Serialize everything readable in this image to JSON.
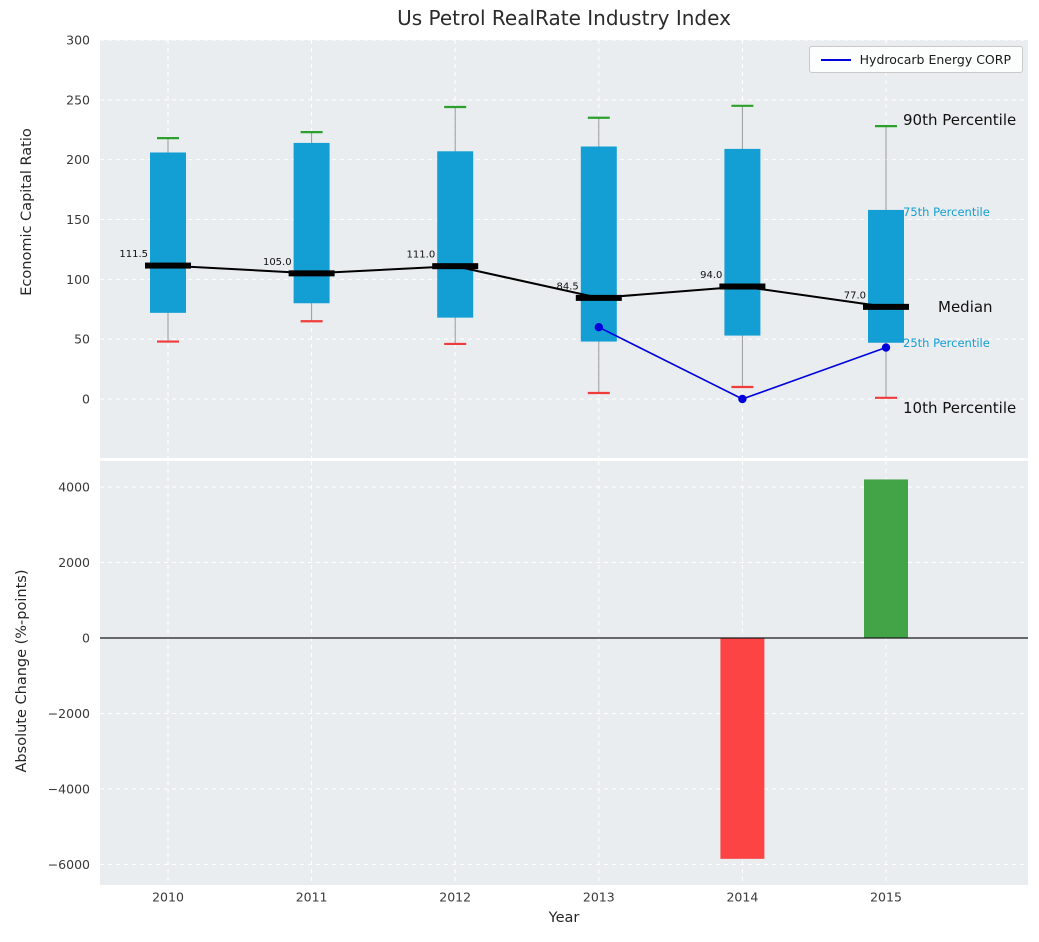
{
  "figure": {
    "title": "Us Petrol RealRate Industry Index",
    "legend_label": "Hydrocarb Energy CORP",
    "xlabel": "Year",
    "top_ylabel": "Economic Capital Ratio",
    "bottom_ylabel": "Absolute Change (%-points)",
    "annotations": {
      "p90": "90th Percentile",
      "p75": "75th Percentile",
      "median": "Median",
      "p25": "25th Percentile",
      "p10": "10th Percentile"
    }
  },
  "colors": {
    "panel_bg": "#e9edef",
    "grid": "#ffffff",
    "box": "#149fd4",
    "median": "#000000",
    "p90_cap": "#2ca02c",
    "p10_cap": "#f03b3b",
    "whisker": "#999999",
    "company_line": "#0000dd",
    "bar_up": "#43a447",
    "bar_down": "#fc4444",
    "annotation_cyan": "#149fd4",
    "tick_text": "#3a3a3a"
  },
  "chart_data": [
    {
      "type": "boxplot",
      "title": "Us Petrol RealRate Industry Index",
      "ylabel": "Economic Capital Ratio",
      "categories": [
        "2010",
        "2011",
        "2012",
        "2013",
        "2014",
        "2015"
      ],
      "yticks": [
        "300",
        "250",
        "200",
        "150",
        "100",
        "50",
        "0"
      ],
      "ytick_values": [
        300,
        250,
        200,
        150,
        100,
        50,
        0
      ],
      "ylim": [
        -50,
        300
      ],
      "grid": true,
      "legend_position": "upper right",
      "series": [
        {
          "name": "90th Percentile",
          "values": [
            218,
            223,
            244,
            235,
            245,
            228
          ]
        },
        {
          "name": "75th Percentile",
          "values": [
            206,
            214,
            207,
            211,
            209,
            158
          ]
        },
        {
          "name": "Median",
          "values": [
            111.5,
            105.0,
            111.0,
            84.5,
            94.0,
            77.0
          ]
        },
        {
          "name": "25th Percentile",
          "values": [
            72,
            80,
            68,
            48,
            53,
            47
          ]
        },
        {
          "name": "10th Percentile",
          "values": [
            48,
            65,
            46,
            5,
            10,
            1
          ]
        },
        {
          "name": "Hydrocarb Energy CORP",
          "values": [
            null,
            null,
            null,
            60,
            0,
            43
          ]
        }
      ],
      "median_labels": [
        "111.5",
        "105.0",
        "111.0",
        "84.5",
        "94.0",
        "77.0"
      ]
    },
    {
      "type": "bar",
      "ylabel": "Absolute Change (%-points)",
      "xlabel": "Year",
      "categories": [
        "2010",
        "2011",
        "2012",
        "2013",
        "2014",
        "2015"
      ],
      "values": [
        null,
        null,
        null,
        null,
        -5850,
        4200
      ],
      "yticks": [
        "4000",
        "2000",
        "0",
        "−2000",
        "−4000",
        "−6000"
      ],
      "ytick_values": [
        4000,
        2000,
        0,
        -2000,
        -4000,
        -6000
      ],
      "ylim": [
        -6500,
        4700
      ],
      "grid": true
    }
  ]
}
